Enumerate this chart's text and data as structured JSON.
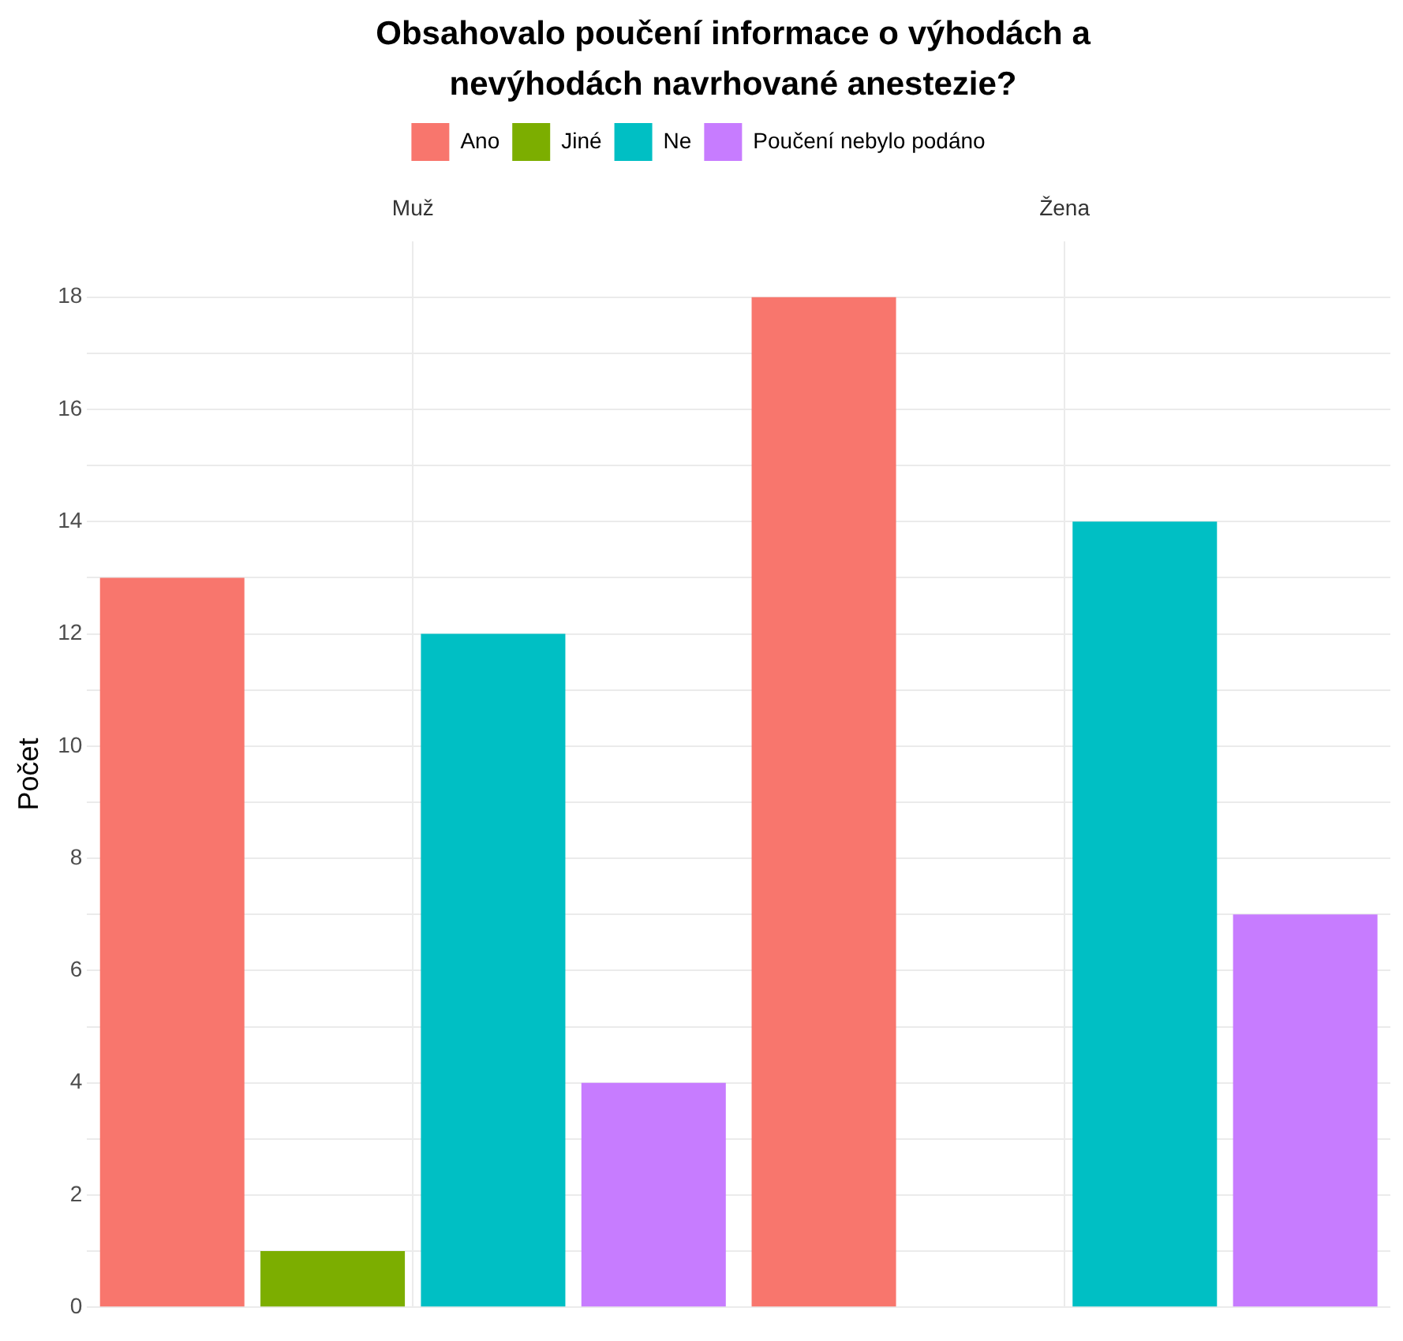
{
  "chart_data": {
    "type": "bar",
    "title": "Obsahovalo poučení informace o výhodách a nevýhodách navrhované anestezie?",
    "ylabel": "Počet",
    "categories": [
      "Muž",
      "Žena"
    ],
    "series": [
      {
        "name": "Ano",
        "color": "#f8766d",
        "values": [
          13,
          18
        ]
      },
      {
        "name": "Jiné",
        "color": "#7cae00",
        "values": [
          1,
          null
        ]
      },
      {
        "name": "Ne",
        "color": "#00bfc4",
        "values": [
          12,
          14
        ]
      },
      {
        "name": "Poučení nebylo podáno",
        "color": "#c77cff",
        "values": [
          4,
          7
        ]
      }
    ],
    "ylim": [
      0,
      19
    ],
    "yticks": [
      0,
      {
        "value": 1,
        "label": null
      },
      2,
      {
        "value": 3,
        "label": null
      },
      4,
      {
        "value": 5,
        "label": null
      },
      6,
      {
        "value": 7,
        "label": null
      },
      8,
      {
        "value": 9,
        "label": null
      },
      10,
      {
        "value": 11,
        "label": null
      },
      12,
      {
        "value": 13,
        "label": null
      },
      14,
      {
        "value": 15,
        "label": null
      },
      16,
      {
        "value": 17,
        "label": null
      },
      18
    ],
    "grid": true,
    "legend": "top"
  }
}
